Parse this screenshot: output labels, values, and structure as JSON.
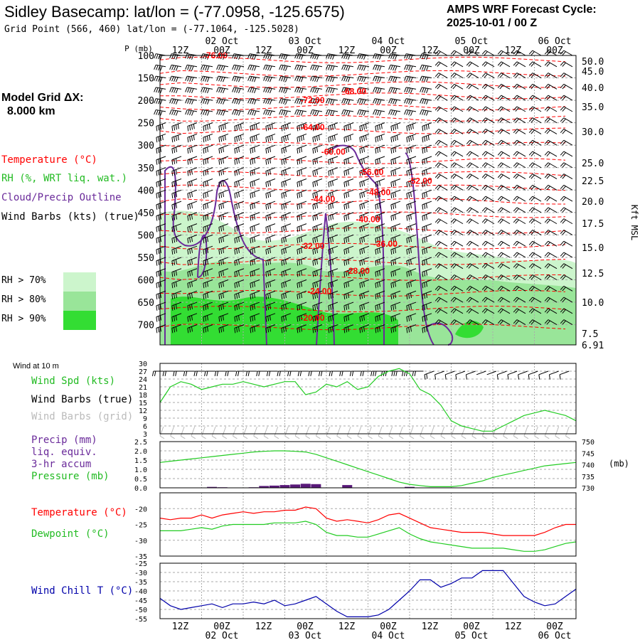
{
  "header": {
    "title": "Sidley Basecamp:  lat/lon = (-77.0958, -125.6575)",
    "subtitle": "Grid Point (566, 460) lat/lon = (-77.1064, -125.5028)",
    "cycle_line1": "AMPS WRF Forecast Cycle:",
    "cycle_line2": "2025-10-01 / 00  Z"
  },
  "model_grid": {
    "line1": "Model Grid ΔX:",
    "line2": "8.000 km"
  },
  "legend": {
    "temperature": "Temperature (°C)",
    "rh": "RH (%, WRT liq. wat.)",
    "cloud": "Cloud/Precip Outline",
    "wind": "Wind Barbs (kts) (true)",
    "rh_levels": [
      "RH > 70%",
      "RH > 80%",
      "RH > 90%"
    ]
  },
  "colors": {
    "temperature": "#ff0000",
    "rh_label": "#22bb22",
    "cloud": "#6a2a9a",
    "rh70": "#ccf5cc",
    "rh80": "#99e599",
    "rh90": "#33dd33",
    "speed_line": "#22cc22",
    "pressure_line": "#22cc22",
    "precip_bar": "#5a1a7a",
    "dewpoint_line": "#22cc22",
    "windchill_line": "#0000aa",
    "grid": "#aaaaaa"
  },
  "time_axis": {
    "top_labels": [
      "12Z",
      "00Z",
      "12Z",
      "00Z",
      "12Z",
      "00Z",
      "12Z",
      "00Z",
      "12Z",
      "00Z"
    ],
    "date_labels": [
      "02 Oct",
      "03 Oct",
      "04 Oct",
      "05 Oct",
      "06 Oct"
    ]
  },
  "side_labels": {
    "p_axis": "P (mb)",
    "kft_axis": "Kft MSL",
    "wind_at_10m": "Wind at 10 m",
    "mb_unit": "(mb)"
  },
  "panel_labels": {
    "wind_speed": "Wind Spd (kts)",
    "wind_barbs_true": "Wind Barbs (true)",
    "wind_barbs_grid": "Wind Barbs (grid)",
    "precip": "Precip (mm)",
    "liq_equiv": "liq. equiv.",
    "accum": "3-hr accum",
    "pressure": "Pressure (mb)",
    "temperature": "Temperature (°C)",
    "dewpoint": "Dewpoint (°C)",
    "wind_chill": "Wind Chill T (°C)"
  },
  "chart_data": [
    {
      "type": "heatmap",
      "name": "time-height cross section",
      "x_hours": [
        0,
        120
      ],
      "pressure_levels": [
        100,
        150,
        200,
        250,
        300,
        350,
        400,
        450,
        500,
        550,
        600,
        650,
        700
      ],
      "kft_ticks": [
        50.0,
        45.0,
        40.0,
        35.0,
        30.0,
        25.0,
        22.5,
        20.0,
        17.5,
        15.0,
        12.5,
        10.0,
        7.5,
        6.91
      ],
      "temperature_labels": [
        {
          "text": "-76.00",
          "hour": 16,
          "p": 100
        },
        {
          "text": "-72.00",
          "hour": 44,
          "p": 200
        },
        {
          "text": "-68.00",
          "hour": 56,
          "p": 180
        },
        {
          "text": "-64.00",
          "hour": 44,
          "p": 260
        },
        {
          "text": "-60.00",
          "hour": 50,
          "p": 315
        },
        {
          "text": "-56.00",
          "hour": 61,
          "p": 360
        },
        {
          "text": "-52.00",
          "hour": 75,
          "p": 380
        },
        {
          "text": "-48.00",
          "hour": 63,
          "p": 405
        },
        {
          "text": "-44.00",
          "hour": 47,
          "p": 420
        },
        {
          "text": "-40.00",
          "hour": 60,
          "p": 465
        },
        {
          "text": "-36.00",
          "hour": 65,
          "p": 520
        },
        {
          "text": "-32.00",
          "hour": 44,
          "p": 525
        },
        {
          "text": "-28.00",
          "hour": 57,
          "p": 580
        },
        {
          "text": "-24.00",
          "hour": 46,
          "p": 625
        },
        {
          "text": "-20.00",
          "hour": 44,
          "p": 685
        }
      ]
    },
    {
      "type": "line",
      "name": "10 m wind",
      "x_hours": [
        0,
        3,
        6,
        9,
        12,
        15,
        18,
        21,
        24,
        27,
        30,
        33,
        36,
        39,
        42,
        45,
        48,
        51,
        54,
        57,
        60,
        63,
        66,
        69,
        72,
        75,
        78,
        81,
        84,
        87,
        90,
        93,
        96,
        99,
        102,
        105,
        108,
        111,
        114,
        117,
        120
      ],
      "values": [
        15,
        21,
        23,
        22,
        20,
        21,
        22,
        22,
        23,
        22,
        21,
        22,
        23,
        23,
        18,
        19,
        22,
        21,
        23,
        20,
        21,
        25,
        27,
        28,
        26,
        20,
        18,
        14,
        8,
        6,
        5,
        4,
        4,
        6,
        8,
        10,
        11,
        12,
        11,
        10,
        8
      ],
      "ylim": [
        3,
        30
      ],
      "yticks": [
        3,
        6,
        9,
        12,
        15,
        18,
        21,
        24,
        27,
        30
      ]
    },
    {
      "type": "bar",
      "name": "3-hr precip and pressure",
      "x_hours": [
        0,
        3,
        6,
        9,
        12,
        15,
        18,
        21,
        24,
        27,
        30,
        33,
        36,
        39,
        42,
        45,
        48,
        51,
        54,
        57,
        60,
        63,
        66,
        69,
        72,
        75,
        78,
        81,
        84,
        87,
        90,
        93,
        96,
        99,
        102,
        105,
        108,
        111,
        114,
        117,
        120
      ],
      "precip": [
        0,
        0,
        0,
        0,
        0,
        0.05,
        0.03,
        0,
        0,
        0.03,
        0.1,
        0.12,
        0.15,
        0.18,
        0.22,
        0.2,
        0,
        0,
        0.15,
        0,
        0,
        0,
        0,
        0,
        0.05,
        0,
        0,
        0,
        0,
        0,
        0,
        0,
        0,
        0,
        0,
        0,
        0,
        0,
        0,
        0,
        0
      ],
      "pressure": [
        741,
        741.5,
        742,
        742.5,
        743,
        743.5,
        744,
        744.5,
        745,
        745.5,
        745.8,
        746,
        746,
        745.8,
        745.5,
        744.5,
        743,
        741.5,
        740,
        738.5,
        737,
        735.5,
        734,
        732.5,
        731.5,
        731,
        730.5,
        730.5,
        730.5,
        731,
        732,
        733,
        734.5,
        735.5,
        736.5,
        737.5,
        738.5,
        739.5,
        740,
        740.5,
        741
      ],
      "precip_ylim": [
        0,
        2.5
      ],
      "precip_ticks": [
        0.0,
        0.5,
        1.0,
        1.5,
        2.0,
        2.5
      ],
      "pressure_ylim": [
        730,
        750
      ],
      "pressure_ticks": [
        730,
        735,
        740,
        745,
        750
      ]
    },
    {
      "type": "line",
      "name": "temperature and dewpoint",
      "x_hours": [
        0,
        3,
        6,
        9,
        12,
        15,
        18,
        21,
        24,
        27,
        30,
        33,
        36,
        39,
        42,
        45,
        48,
        51,
        54,
        57,
        60,
        63,
        66,
        69,
        72,
        75,
        78,
        81,
        84,
        87,
        90,
        93,
        96,
        99,
        102,
        105,
        108,
        111,
        114,
        117,
        120
      ],
      "series": [
        {
          "name": "Temperature (°C)",
          "values": [
            -23,
            -23.5,
            -23,
            -23,
            -22,
            -23,
            -22,
            -21.5,
            -21,
            -21.5,
            -21,
            -21,
            -20.5,
            -20.5,
            -19.5,
            -20,
            -23,
            -24,
            -23.5,
            -24,
            -24.5,
            -23.5,
            -22,
            -21.5,
            -23,
            -24.5,
            -26,
            -26.5,
            -27,
            -27.5,
            -27.5,
            -27.5,
            -28,
            -28.5,
            -28.5,
            -28.5,
            -28.5,
            -27.5,
            -26,
            -25,
            -25
          ]
        },
        {
          "name": "Dewpoint (°C)",
          "values": [
            -27,
            -27,
            -27,
            -26.5,
            -26,
            -26.5,
            -25.5,
            -25,
            -25,
            -25,
            -25,
            -24.5,
            -24.5,
            -24.5,
            -24,
            -25,
            -27.5,
            -28.5,
            -28.5,
            -29,
            -29,
            -28,
            -27,
            -26,
            -28,
            -29.5,
            -30.5,
            -31,
            -31.5,
            -32,
            -32.5,
            -32.5,
            -32.5,
            -32.5,
            -33,
            -33.5,
            -33.5,
            -33,
            -32,
            -31,
            -30.5
          ]
        }
      ],
      "ylim": [
        -35,
        -15
      ],
      "yticks": [
        -35,
        -30,
        -25,
        -20
      ]
    },
    {
      "type": "line",
      "name": "wind chill",
      "x_hours": [
        0,
        3,
        6,
        9,
        12,
        15,
        18,
        21,
        24,
        27,
        30,
        33,
        36,
        39,
        42,
        45,
        48,
        51,
        54,
        57,
        60,
        63,
        66,
        69,
        72,
        75,
        78,
        81,
        84,
        87,
        90,
        93,
        96,
        99,
        102,
        105,
        108,
        111,
        114,
        117,
        120
      ],
      "series": [
        {
          "name": "Wind Chill T (°C)",
          "values": [
            -44,
            -48,
            -50,
            -49,
            -48,
            -47,
            -49,
            -47,
            -47,
            -46,
            -47,
            -45,
            -48,
            -47,
            -45,
            -43,
            -47,
            -51,
            -54,
            -54,
            -54,
            -53,
            -50,
            -45,
            -40,
            -34,
            -34,
            -38,
            -36,
            -33,
            -33,
            -29,
            -29,
            -29,
            -36,
            -43,
            -46,
            -48,
            -47,
            -43,
            -39
          ]
        }
      ],
      "ylim": [
        -55,
        -25
      ],
      "yticks": [
        -55,
        -50,
        -45,
        -40,
        -35,
        -30,
        -25
      ]
    }
  ]
}
